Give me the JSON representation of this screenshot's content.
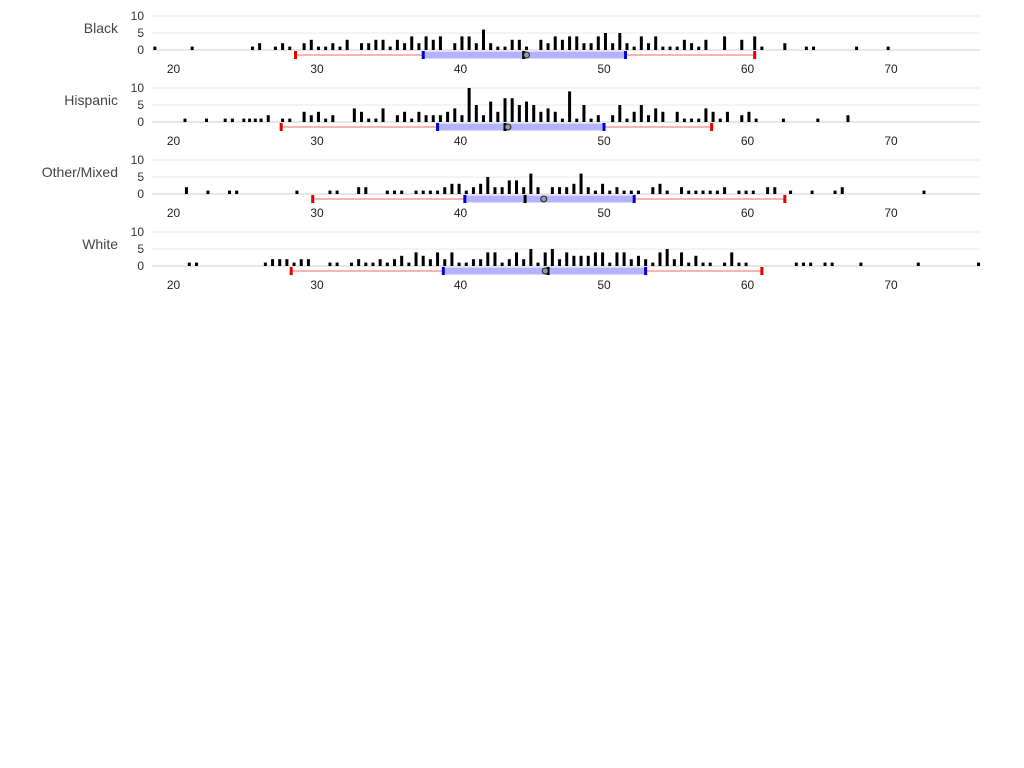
{
  "chart_data": {
    "type": "bar",
    "title": "",
    "xlabel": "",
    "ylabel": "",
    "xlim": [
      18.5,
      76.2
    ],
    "ylim": [
      0,
      10
    ],
    "x_ticks": [
      "20",
      "30",
      "40",
      "50",
      "60",
      "70"
    ],
    "y_ticks": [
      "0",
      "5",
      "10"
    ],
    "grid": "horizontal",
    "legend": "none",
    "colors": {
      "bars": "#000000",
      "whisker": "#ff9999",
      "whisker_cap": "#e00000",
      "iqr_box": "#b3b3ff",
      "iqr_cap": "#0000cc",
      "median": "#000000",
      "mean_marker": "#999999",
      "grid": "#e8e8e8",
      "axis": "#cccccc"
    },
    "groups": [
      {
        "name": "Black",
        "histogram": [
          [
            18.7,
            1
          ],
          [
            21.3,
            1
          ],
          [
            25.5,
            1
          ],
          [
            26,
            2
          ],
          [
            27.1,
            1
          ],
          [
            27.6,
            2
          ],
          [
            28.1,
            1
          ],
          [
            29.1,
            2
          ],
          [
            29.6,
            3
          ],
          [
            30.1,
            1
          ],
          [
            30.6,
            1
          ],
          [
            31.1,
            2
          ],
          [
            31.6,
            1
          ],
          [
            32.1,
            3
          ],
          [
            33.1,
            2
          ],
          [
            33.6,
            2
          ],
          [
            34.1,
            3
          ],
          [
            34.6,
            3
          ],
          [
            35.1,
            1
          ],
          [
            35.6,
            3
          ],
          [
            36.1,
            2
          ],
          [
            36.6,
            4
          ],
          [
            37.1,
            2
          ],
          [
            37.6,
            4
          ],
          [
            38.1,
            3
          ],
          [
            38.6,
            4
          ],
          [
            39.6,
            2
          ],
          [
            40.1,
            4
          ],
          [
            40.6,
            4
          ],
          [
            41.1,
            2
          ],
          [
            41.6,
            6
          ],
          [
            42.1,
            2
          ],
          [
            42.6,
            1
          ],
          [
            43.1,
            1
          ],
          [
            43.6,
            3
          ],
          [
            44.1,
            3
          ],
          [
            44.6,
            1
          ],
          [
            45.6,
            3
          ],
          [
            46.1,
            2
          ],
          [
            46.6,
            4
          ],
          [
            47.1,
            3
          ],
          [
            47.6,
            4
          ],
          [
            48.1,
            4
          ],
          [
            48.6,
            2
          ],
          [
            49.1,
            2
          ],
          [
            49.6,
            4
          ],
          [
            50.1,
            5
          ],
          [
            50.6,
            2
          ],
          [
            51.1,
            5
          ],
          [
            51.6,
            2
          ],
          [
            52.1,
            1
          ],
          [
            52.6,
            4
          ],
          [
            53.1,
            2
          ],
          [
            53.6,
            4
          ],
          [
            54.1,
            1
          ],
          [
            54.6,
            1
          ],
          [
            55.1,
            1
          ],
          [
            55.6,
            3
          ],
          [
            56.1,
            2
          ],
          [
            56.6,
            1
          ],
          [
            57.1,
            3
          ],
          [
            58.4,
            4
          ],
          [
            59.6,
            3
          ],
          [
            60.5,
            4
          ],
          [
            61,
            1
          ],
          [
            62.6,
            2
          ],
          [
            64.1,
            1
          ],
          [
            64.6,
            1
          ],
          [
            67.6,
            1
          ],
          [
            69.8,
            1
          ]
        ],
        "whisker_low": 28.5,
        "q1": 37.4,
        "median": 44.4,
        "mean": 44.6,
        "q3": 51.5,
        "whisker_high": 60.5
      },
      {
        "name": "Hispanic",
        "histogram": [
          [
            20.8,
            1
          ],
          [
            22.3,
            1
          ],
          [
            23.6,
            1
          ],
          [
            24.1,
            1
          ],
          [
            24.9,
            1
          ],
          [
            25.3,
            1
          ],
          [
            25.7,
            1
          ],
          [
            26.1,
            1
          ],
          [
            26.6,
            2
          ],
          [
            27.6,
            1
          ],
          [
            28.1,
            1
          ],
          [
            29.1,
            3
          ],
          [
            29.6,
            2
          ],
          [
            30.1,
            3
          ],
          [
            30.6,
            1
          ],
          [
            31.1,
            2
          ],
          [
            32.6,
            4
          ],
          [
            33.1,
            3
          ],
          [
            33.6,
            1
          ],
          [
            34.1,
            1
          ],
          [
            34.6,
            4
          ],
          [
            35.6,
            2
          ],
          [
            36.1,
            3
          ],
          [
            36.6,
            1
          ],
          [
            37.1,
            3
          ],
          [
            37.6,
            2
          ],
          [
            38.1,
            2
          ],
          [
            38.6,
            2
          ],
          [
            39.1,
            3
          ],
          [
            39.6,
            4
          ],
          [
            40.1,
            2
          ],
          [
            40.6,
            10
          ],
          [
            41.1,
            5
          ],
          [
            41.6,
            2
          ],
          [
            42.1,
            6
          ],
          [
            42.6,
            3
          ],
          [
            43.1,
            7
          ],
          [
            43.6,
            7
          ],
          [
            44.1,
            5
          ],
          [
            44.6,
            6
          ],
          [
            45.1,
            5
          ],
          [
            45.6,
            3
          ],
          [
            46.1,
            4
          ],
          [
            46.6,
            3
          ],
          [
            47.1,
            1
          ],
          [
            47.6,
            9
          ],
          [
            48.1,
            1
          ],
          [
            48.6,
            5
          ],
          [
            49.1,
            1
          ],
          [
            49.6,
            2
          ],
          [
            50.6,
            2
          ],
          [
            51.1,
            5
          ],
          [
            51.6,
            1
          ],
          [
            52.1,
            3
          ],
          [
            52.6,
            5
          ],
          [
            53.1,
            2
          ],
          [
            53.6,
            4
          ],
          [
            54.1,
            3
          ],
          [
            55.1,
            3
          ],
          [
            55.6,
            1
          ],
          [
            56.1,
            1
          ],
          [
            56.6,
            1
          ],
          [
            57.1,
            4
          ],
          [
            57.6,
            3
          ],
          [
            58.1,
            1
          ],
          [
            58.6,
            3
          ],
          [
            59.6,
            2
          ],
          [
            60.1,
            3
          ],
          [
            60.6,
            1
          ],
          [
            62.5,
            1
          ],
          [
            64.9,
            1
          ],
          [
            67,
            2
          ]
        ],
        "whisker_low": 27.5,
        "q1": 38.4,
        "median": 43.1,
        "mean": 43.3,
        "q3": 50,
        "whisker_high": 57.5
      },
      {
        "name": "Other/Mixed",
        "histogram": [
          [
            20.9,
            2
          ],
          [
            22.4,
            1
          ],
          [
            23.9,
            1
          ],
          [
            24.4,
            1
          ],
          [
            28.6,
            1
          ],
          [
            30.9,
            1
          ],
          [
            31.4,
            1
          ],
          [
            32.9,
            2
          ],
          [
            33.4,
            2
          ],
          [
            34.9,
            1
          ],
          [
            35.4,
            1
          ],
          [
            35.9,
            1
          ],
          [
            36.9,
            1
          ],
          [
            37.4,
            1
          ],
          [
            37.9,
            1
          ],
          [
            38.4,
            1
          ],
          [
            38.9,
            2
          ],
          [
            39.4,
            3
          ],
          [
            39.9,
            3
          ],
          [
            40.4,
            1
          ],
          [
            40.9,
            2
          ],
          [
            41.4,
            3
          ],
          [
            41.9,
            5
          ],
          [
            42.4,
            2
          ],
          [
            42.9,
            2
          ],
          [
            43.4,
            4
          ],
          [
            43.9,
            4
          ],
          [
            44.4,
            2
          ],
          [
            44.9,
            6
          ],
          [
            45.4,
            2
          ],
          [
            46.4,
            2
          ],
          [
            46.9,
            2
          ],
          [
            47.4,
            2
          ],
          [
            47.9,
            3
          ],
          [
            48.4,
            6
          ],
          [
            48.9,
            2
          ],
          [
            49.4,
            1
          ],
          [
            49.9,
            3
          ],
          [
            50.4,
            1
          ],
          [
            50.9,
            2
          ],
          [
            51.4,
            1
          ],
          [
            51.9,
            1
          ],
          [
            52.4,
            1
          ],
          [
            53.4,
            2
          ],
          [
            53.9,
            3
          ],
          [
            54.4,
            1
          ],
          [
            55.4,
            2
          ],
          [
            55.9,
            1
          ],
          [
            56.4,
            1
          ],
          [
            56.9,
            1
          ],
          [
            57.4,
            1
          ],
          [
            57.9,
            1
          ],
          [
            58.4,
            2
          ],
          [
            59.4,
            1
          ],
          [
            59.9,
            1
          ],
          [
            60.4,
            1
          ],
          [
            61.4,
            2
          ],
          [
            61.9,
            2
          ],
          [
            63,
            1
          ],
          [
            64.5,
            1
          ],
          [
            66.1,
            1
          ],
          [
            66.6,
            2
          ],
          [
            72.3,
            1
          ]
        ],
        "whisker_low": 29.7,
        "q1": 40.3,
        "median": 44.5,
        "mean": 45.8,
        "q3": 52.1,
        "whisker_high": 62.6
      },
      {
        "name": "White",
        "histogram": [
          [
            21.1,
            1
          ],
          [
            21.6,
            1
          ],
          [
            26.4,
            1
          ],
          [
            26.9,
            2
          ],
          [
            27.4,
            2
          ],
          [
            27.9,
            2
          ],
          [
            28.4,
            1
          ],
          [
            28.9,
            2
          ],
          [
            29.4,
            2
          ],
          [
            30.9,
            1
          ],
          [
            31.4,
            1
          ],
          [
            32.4,
            1
          ],
          [
            32.9,
            2
          ],
          [
            33.4,
            1
          ],
          [
            33.9,
            1
          ],
          [
            34.4,
            2
          ],
          [
            34.9,
            1
          ],
          [
            35.4,
            2
          ],
          [
            35.9,
            3
          ],
          [
            36.4,
            1
          ],
          [
            36.9,
            4
          ],
          [
            37.4,
            3
          ],
          [
            37.9,
            2
          ],
          [
            38.4,
            4
          ],
          [
            38.9,
            2
          ],
          [
            39.4,
            4
          ],
          [
            39.9,
            1
          ],
          [
            40.4,
            1
          ],
          [
            40.9,
            2
          ],
          [
            41.4,
            2
          ],
          [
            41.9,
            4
          ],
          [
            42.4,
            4
          ],
          [
            42.9,
            1
          ],
          [
            43.4,
            2
          ],
          [
            43.9,
            4
          ],
          [
            44.4,
            2
          ],
          [
            44.9,
            5
          ],
          [
            45.4,
            1
          ],
          [
            45.9,
            4
          ],
          [
            46.4,
            5
          ],
          [
            46.9,
            2
          ],
          [
            47.4,
            4
          ],
          [
            47.9,
            3
          ],
          [
            48.4,
            3
          ],
          [
            48.9,
            3
          ],
          [
            49.4,
            4
          ],
          [
            49.9,
            4
          ],
          [
            50.4,
            1
          ],
          [
            50.9,
            4
          ],
          [
            51.4,
            4
          ],
          [
            51.9,
            2
          ],
          [
            52.4,
            3
          ],
          [
            52.9,
            2
          ],
          [
            53.4,
            1
          ],
          [
            53.9,
            4
          ],
          [
            54.4,
            5
          ],
          [
            54.9,
            2
          ],
          [
            55.4,
            4
          ],
          [
            55.9,
            1
          ],
          [
            56.4,
            3
          ],
          [
            56.9,
            1
          ],
          [
            57.4,
            1
          ],
          [
            58.4,
            1
          ],
          [
            58.9,
            4
          ],
          [
            59.4,
            1
          ],
          [
            59.9,
            1
          ],
          [
            63.4,
            1
          ],
          [
            63.9,
            1
          ],
          [
            64.4,
            1
          ],
          [
            65.4,
            1
          ],
          [
            65.9,
            1
          ],
          [
            67.9,
            1
          ],
          [
            71.9,
            1
          ],
          [
            76.1,
            1
          ]
        ],
        "whisker_low": 28.2,
        "q1": 38.8,
        "median": 46.1,
        "mean": 45.9,
        "q3": 52.9,
        "whisker_high": 61
      }
    ]
  }
}
